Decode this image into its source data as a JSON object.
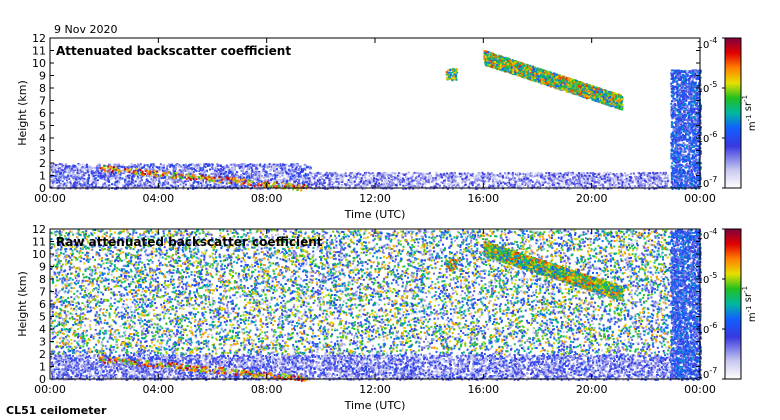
{
  "date": "9 Nov 2020",
  "instrument": "CL51 ceilometer",
  "chart_data": [
    {
      "type": "heatmap",
      "title": "Attenuated backscatter coefficient",
      "xlabel": "Time (UTC)",
      "ylabel": "Height (km)",
      "x_ticks": [
        "00:00",
        "04:00",
        "08:00",
        "12:00",
        "16:00",
        "20:00",
        "00:00"
      ],
      "y_ticks": [
        "0",
        "1",
        "2",
        "3",
        "4",
        "5",
        "6",
        "7",
        "8",
        "9",
        "10",
        "11",
        "12"
      ],
      "xlim_hours": [
        0,
        24
      ],
      "ylim_km": [
        0,
        12
      ],
      "colorbar": {
        "label": "m-1 sr-1",
        "ticks": [
          "10-7",
          "10-6",
          "10-5",
          "10-4"
        ],
        "log_range": [
          -7,
          -4
        ]
      },
      "features": [
        {
          "name": "boundary layer aerosol",
          "t_start": 0.0,
          "t_end": 9.6,
          "h_bottom": 0.0,
          "h_top": 2.0
        },
        {
          "name": "low cloud base",
          "t_start": 1.8,
          "t_end": 9.5,
          "h_bottom": 0.05,
          "h_top": 1.9
        },
        {
          "name": "aerosol",
          "t_start": 9.6,
          "t_end": 22.8,
          "h_bottom": 0.0,
          "h_top": 1.3
        },
        {
          "name": "cirrus",
          "t_start": 14.6,
          "t_end": 15.0,
          "h_bottom": 8.7,
          "h_top": 9.6
        },
        {
          "name": "cirrus",
          "t_start": 16.0,
          "t_end": 21.1,
          "h_bottom": 6.5,
          "h_top": 10.8
        },
        {
          "name": "cloud/precipitation",
          "t_start": 22.9,
          "t_end": 24.0,
          "h_bottom": 0.0,
          "h_top": 9.5
        }
      ]
    },
    {
      "type": "heatmap",
      "title": "Raw attenuated backscatter coefficient",
      "xlabel": "Time (UTC)",
      "ylabel": "Height (km)",
      "x_ticks": [
        "00:00",
        "04:00",
        "08:00",
        "12:00",
        "16:00",
        "20:00",
        "00:00"
      ],
      "y_ticks": [
        "0",
        "1",
        "2",
        "3",
        "4",
        "5",
        "6",
        "7",
        "8",
        "9",
        "10",
        "11",
        "12"
      ],
      "xlim_hours": [
        0,
        24
      ],
      "ylim_km": [
        0,
        12
      ],
      "colorbar": {
        "label": "m-1 sr-1",
        "ticks": [
          "10-7",
          "10-6",
          "10-5",
          "10-4"
        ],
        "log_range": [
          -7,
          -4
        ]
      },
      "features": [
        {
          "name": "noisy background",
          "t_start": 0.0,
          "t_end": 22.9,
          "h_bottom": 2.0,
          "h_top": 12.0
        },
        {
          "name": "boundary layer aerosol",
          "t_start": 0.0,
          "t_end": 22.9,
          "h_bottom": 0.0,
          "h_top": 2.0
        },
        {
          "name": "low cloud base",
          "t_start": 1.8,
          "t_end": 9.5,
          "h_bottom": 0.05,
          "h_top": 1.9
        },
        {
          "name": "cirrus",
          "t_start": 14.6,
          "t_end": 15.0,
          "h_bottom": 8.7,
          "h_top": 9.6
        },
        {
          "name": "cirrus",
          "t_start": 16.0,
          "t_end": 21.1,
          "h_bottom": 6.5,
          "h_top": 10.8
        },
        {
          "name": "cloud/precipitation",
          "t_start": 22.9,
          "t_end": 24.0,
          "h_bottom": 0.0,
          "h_top": 12.0
        }
      ]
    }
  ]
}
